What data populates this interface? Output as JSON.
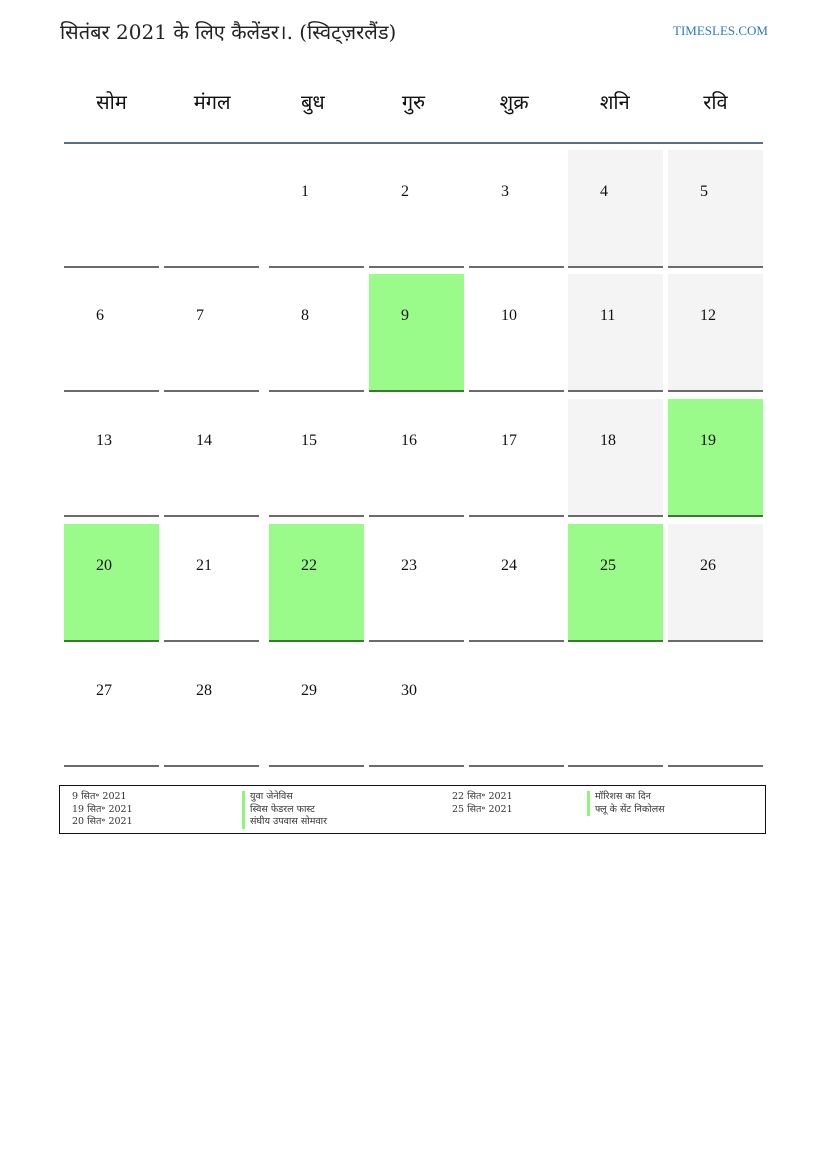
{
  "title": "सितंबर 2021 के लिए कैलेंडर।. (स्विट्ज़रलैंड)",
  "site": "TIMESLES.COM",
  "weekdays": [
    "सोम",
    "मंगल",
    "बुध",
    "गुरु",
    "शुक्र",
    "शनि",
    "रवि"
  ],
  "colors": {
    "holiday": "#9afa8a",
    "weekend": "#f4f4f4",
    "header_line": "#5a6e8c"
  },
  "weeks": [
    [
      "",
      "",
      "1",
      "2",
      "3",
      "4",
      "5"
    ],
    [
      "6",
      "7",
      "8",
      "9",
      "10",
      "11",
      "12"
    ],
    [
      "13",
      "14",
      "15",
      "16",
      "17",
      "18",
      "19"
    ],
    [
      "20",
      "21",
      "22",
      "23",
      "24",
      "25",
      "26"
    ],
    [
      "27",
      "28",
      "29",
      "30",
      "",
      "",
      ""
    ]
  ],
  "holidays": [
    "9",
    "19",
    "20",
    "22",
    "25"
  ],
  "legend_left": [
    {
      "date": "9 सित॰ 2021",
      "name": "युवा जेनेविस"
    },
    {
      "date": "19 सित॰ 2021",
      "name": "स्विस फेडरल फास्ट"
    },
    {
      "date": "20 सित॰ 2021",
      "name": "संघीय उपवास सोमवार"
    }
  ],
  "legend_right": [
    {
      "date": "22 सित॰ 2021",
      "name": "मॉरिशस का दिन"
    },
    {
      "date": "25 सित॰ 2021",
      "name": "फ्लू के सेंट निकोलस"
    }
  ]
}
